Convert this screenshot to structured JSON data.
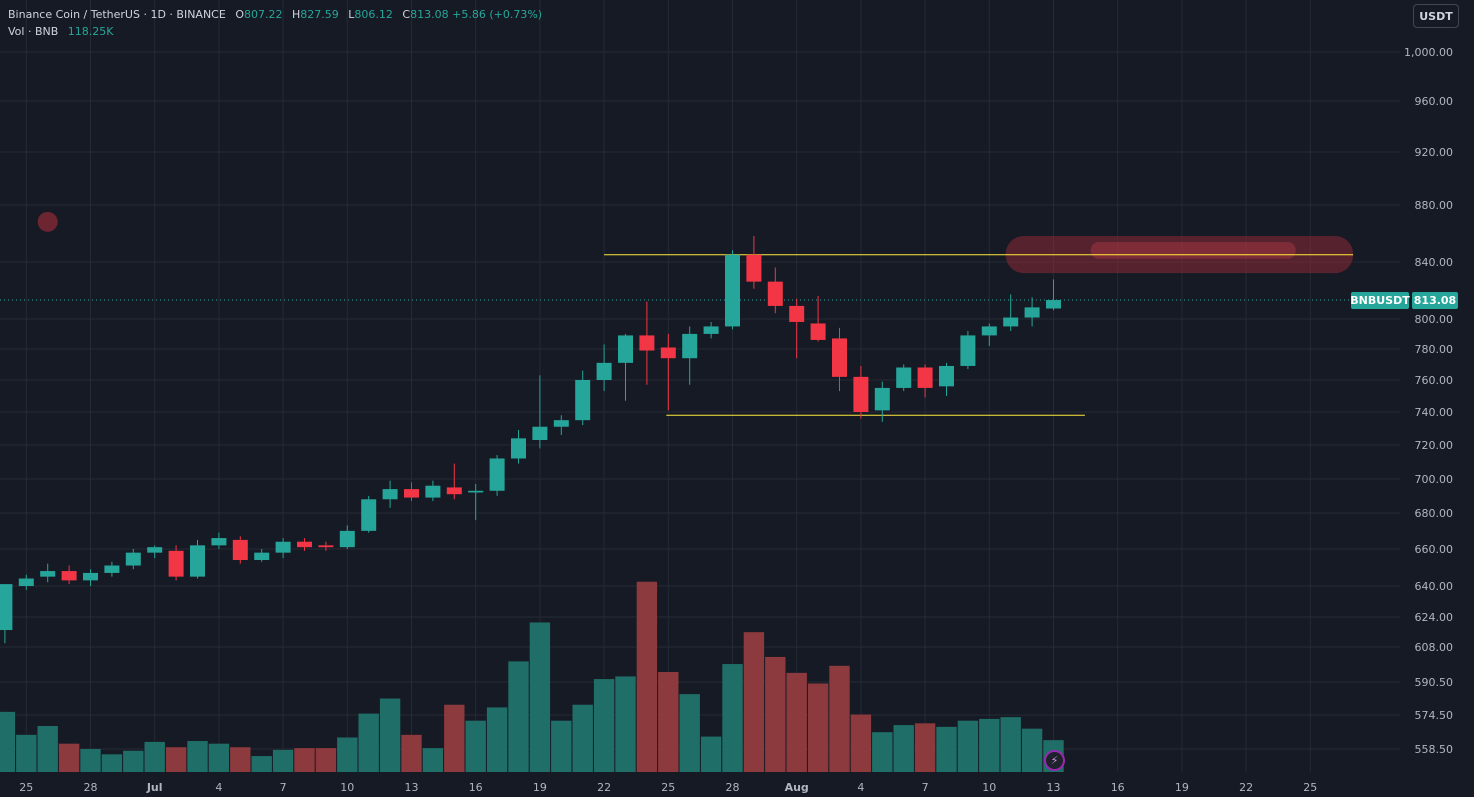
{
  "legend": {
    "symbol": "Binance Coin / TetherUS · 1D · BINANCE",
    "o_label": "O",
    "o_value": "807.22",
    "h_label": "H",
    "h_value": "827.59",
    "l_label": "L",
    "l_value": "806.12",
    "c_label": "C",
    "c_value": "813.08",
    "change": "+5.86 (+0.73%)",
    "vol_label": "Vol · BNB",
    "vol_value": "118.25K"
  },
  "toolbar": {
    "currency_button": "USDT"
  },
  "price_label": {
    "symbol": "BNBUSDT",
    "value": "813.08"
  },
  "colors": {
    "background": "#161a25",
    "up": "#26a69a",
    "down": "#f23645",
    "volume_up": "#1f6e67",
    "volume_down": "#8c3a3d",
    "annotation_line": "#ffeb3b",
    "highlight": "#8a2a35",
    "grid": "#262a35"
  },
  "icons": {
    "bolt": "bolt-icon"
  },
  "chart_data": {
    "type": "candlestick",
    "title": "Binance Coin / TetherUS · 1D · BINANCE",
    "y_axis_ticks": [
      "1,000.00",
      "960.00",
      "920.00",
      "880.00",
      "840.00",
      "800.00",
      "780.00",
      "760.00",
      "740.00",
      "720.00",
      "700.00",
      "680.00",
      "660.00",
      "640.00",
      "624.00",
      "608.00",
      "590.50",
      "574.50",
      "558.50"
    ],
    "x_axis_ticks": [
      "25",
      "28",
      "Jul",
      "4",
      "7",
      "10",
      "13",
      "16",
      "19",
      "22",
      "25",
      "28",
      "Aug",
      "4",
      "7",
      "10",
      "13",
      "16",
      "19",
      "22",
      "25"
    ],
    "x_tick_slots": [
      1,
      4,
      7,
      10,
      13,
      16,
      19,
      22,
      25,
      28,
      31,
      34,
      37,
      40,
      43,
      46,
      49,
      52,
      55,
      58,
      61
    ],
    "grid": true,
    "log_scale": true,
    "slot_first_date": "2025-06-24",
    "candles": [
      {
        "date": "Jun 24",
        "o": 617,
        "h": 641,
        "l": 610,
        "c": 641
      },
      {
        "date": "Jun 25",
        "o": 640,
        "h": 646,
        "l": 638,
        "c": 644
      },
      {
        "date": "Jun 26",
        "o": 645,
        "h": 652,
        "l": 642,
        "c": 648
      },
      {
        "date": "Jun 27",
        "o": 648,
        "h": 651,
        "l": 641,
        "c": 643
      },
      {
        "date": "Jun 28",
        "o": 643,
        "h": 649,
        "l": 640,
        "c": 647
      },
      {
        "date": "Jun 29",
        "o": 647,
        "h": 653,
        "l": 645,
        "c": 651
      },
      {
        "date": "Jun 30",
        "o": 651,
        "h": 660,
        "l": 649,
        "c": 658
      },
      {
        "date": "Jul 1",
        "o": 658,
        "h": 662,
        "l": 655,
        "c": 661
      },
      {
        "date": "Jul 2",
        "o": 659,
        "h": 662,
        "l": 643,
        "c": 645
      },
      {
        "date": "Jul 3",
        "o": 645,
        "h": 665,
        "l": 644,
        "c": 662
      },
      {
        "date": "Jul 4",
        "o": 662,
        "h": 669,
        "l": 660,
        "c": 666
      },
      {
        "date": "Jul 5",
        "o": 665,
        "h": 667,
        "l": 652,
        "c": 654
      },
      {
        "date": "Jul 6",
        "o": 654,
        "h": 660,
        "l": 653,
        "c": 658
      },
      {
        "date": "Jul 7",
        "o": 658,
        "h": 666,
        "l": 655,
        "c": 664
      },
      {
        "date": "Jul 8",
        "o": 664,
        "h": 666,
        "l": 659,
        "c": 661
      },
      {
        "date": "Jul 9",
        "o": 662,
        "h": 664,
        "l": 659,
        "c": 661
      },
      {
        "date": "Jul 10",
        "o": 661,
        "h": 673,
        "l": 660,
        "c": 670
      },
      {
        "date": "Jul 11",
        "o": 670,
        "h": 690,
        "l": 669,
        "c": 688
      },
      {
        "date": "Jul 12",
        "o": 688,
        "h": 699,
        "l": 683,
        "c": 694
      },
      {
        "date": "Jul 13",
        "o": 694,
        "h": 698,
        "l": 687,
        "c": 689
      },
      {
        "date": "Jul 14",
        "o": 689,
        "h": 699,
        "l": 687,
        "c": 696
      },
      {
        "date": "Jul 15",
        "o": 695,
        "h": 709,
        "l": 688,
        "c": 691
      },
      {
        "date": "Jul 16",
        "o": 692,
        "h": 697,
        "l": 676,
        "c": 693
      },
      {
        "date": "Jul 17",
        "o": 693,
        "h": 714,
        "l": 690,
        "c": 712
      },
      {
        "date": "Jul 18",
        "o": 712,
        "h": 729,
        "l": 709,
        "c": 724
      },
      {
        "date": "Jul 19",
        "o": 723,
        "h": 763,
        "l": 718,
        "c": 731
      },
      {
        "date": "Jul 20",
        "o": 731,
        "h": 738,
        "l": 726,
        "c": 735
      },
      {
        "date": "Jul 21",
        "o": 735,
        "h": 766,
        "l": 732,
        "c": 760
      },
      {
        "date": "Jul 22",
        "o": 760,
        "h": 783,
        "l": 753,
        "c": 771
      },
      {
        "date": "Jul 23",
        "o": 771,
        "h": 790,
        "l": 747,
        "c": 789
      },
      {
        "date": "Jul 24",
        "o": 789,
        "h": 812,
        "l": 757,
        "c": 779
      },
      {
        "date": "Jul 25",
        "o": 781,
        "h": 790,
        "l": 741,
        "c": 774
      },
      {
        "date": "Jul 26",
        "o": 774,
        "h": 795,
        "l": 757,
        "c": 790
      },
      {
        "date": "Jul 27",
        "o": 790,
        "h": 798,
        "l": 787,
        "c": 795
      },
      {
        "date": "Jul 28",
        "o": 795,
        "h": 848,
        "l": 793,
        "c": 845
      },
      {
        "date": "Jul 29",
        "o": 845,
        "h": 858,
        "l": 821,
        "c": 826
      },
      {
        "date": "Jul 30",
        "o": 826,
        "h": 836,
        "l": 804,
        "c": 809
      },
      {
        "date": "Jul 31",
        "o": 809,
        "h": 814,
        "l": 774,
        "c": 798
      },
      {
        "date": "Aug 1",
        "o": 797,
        "h": 816,
        "l": 785,
        "c": 786
      },
      {
        "date": "Aug 2",
        "o": 787,
        "h": 794,
        "l": 753,
        "c": 762
      },
      {
        "date": "Aug 3",
        "o": 762,
        "h": 769,
        "l": 736,
        "c": 740
      },
      {
        "date": "Aug 4",
        "o": 741,
        "h": 759,
        "l": 734,
        "c": 755
      },
      {
        "date": "Aug 5",
        "o": 755,
        "h": 770,
        "l": 753,
        "c": 768
      },
      {
        "date": "Aug 6",
        "o": 768,
        "h": 770,
        "l": 749,
        "c": 755
      },
      {
        "date": "Aug 7",
        "o": 756,
        "h": 771,
        "l": 750,
        "c": 769
      },
      {
        "date": "Aug 8",
        "o": 769,
        "h": 792,
        "l": 767,
        "c": 789
      },
      {
        "date": "Aug 9",
        "o": 789,
        "h": 797,
        "l": 782,
        "c": 795
      },
      {
        "date": "Aug 10",
        "o": 795,
        "h": 817,
        "l": 792,
        "c": 801
      },
      {
        "date": "Aug 11",
        "o": 801,
        "h": 815,
        "l": 795,
        "c": 808
      },
      {
        "date": "Aug 12",
        "o": 807.22,
        "h": 827.59,
        "l": 806.12,
        "c": 813.08
      }
    ],
    "volume_unit": "relative",
    "volume": [
      {
        "v": 34.0,
        "up": true
      },
      {
        "v": 21.0,
        "up": true
      },
      {
        "v": 26.0,
        "up": true
      },
      {
        "v": 16.0,
        "up": false
      },
      {
        "v": 13.0,
        "up": true
      },
      {
        "v": 10.0,
        "up": true
      },
      {
        "v": 12.0,
        "up": true
      },
      {
        "v": 17.0,
        "up": true
      },
      {
        "v": 14.0,
        "up": false
      },
      {
        "v": 17.5,
        "up": true
      },
      {
        "v": 16.0,
        "up": true
      },
      {
        "v": 14.0,
        "up": false
      },
      {
        "v": 9.0,
        "up": true
      },
      {
        "v": 12.5,
        "up": true
      },
      {
        "v": 13.5,
        "up": false
      },
      {
        "v": 13.5,
        "up": false
      },
      {
        "v": 19.5,
        "up": true
      },
      {
        "v": 33.0,
        "up": true
      },
      {
        "v": 41.5,
        "up": true
      },
      {
        "v": 21.0,
        "up": false
      },
      {
        "v": 13.5,
        "up": true
      },
      {
        "v": 38.0,
        "up": false
      },
      {
        "v": 29.0,
        "up": true
      },
      {
        "v": 36.5,
        "up": true
      },
      {
        "v": 62.5,
        "up": true
      },
      {
        "v": 84.5,
        "up": true
      },
      {
        "v": 29.0,
        "up": true
      },
      {
        "v": 38.0,
        "up": true
      },
      {
        "v": 52.5,
        "up": true
      },
      {
        "v": 54.0,
        "up": true
      },
      {
        "v": 107.5,
        "up": false
      },
      {
        "v": 56.5,
        "up": false
      },
      {
        "v": 44.0,
        "up": true
      },
      {
        "v": 20.0,
        "up": true
      },
      {
        "v": 61.0,
        "up": true
      },
      {
        "v": 79.0,
        "up": false
      },
      {
        "v": 65.0,
        "up": false
      },
      {
        "v": 56.0,
        "up": false
      },
      {
        "v": 50.0,
        "up": false
      },
      {
        "v": 60.0,
        "up": false
      },
      {
        "v": 32.5,
        "up": false
      },
      {
        "v": 22.5,
        "up": true
      },
      {
        "v": 26.5,
        "up": true
      },
      {
        "v": 27.5,
        "up": false
      },
      {
        "v": 25.5,
        "up": true
      },
      {
        "v": 29.0,
        "up": true
      },
      {
        "v": 30.0,
        "up": true
      },
      {
        "v": 31.0,
        "up": true
      },
      {
        "v": 24.5,
        "up": true
      },
      {
        "v": 18.0,
        "up": true
      }
    ],
    "annotations": {
      "resistance": 845,
      "support": 738,
      "resistance_slots": [
        28,
        63
      ],
      "support_slots": [
        31,
        50
      ],
      "highlight_zone": [
        832,
        858
      ],
      "highlight_slots": [
        47,
        63
      ],
      "dot_price": 868,
      "dot_slot": 2,
      "last_price": 813.08
    }
  }
}
